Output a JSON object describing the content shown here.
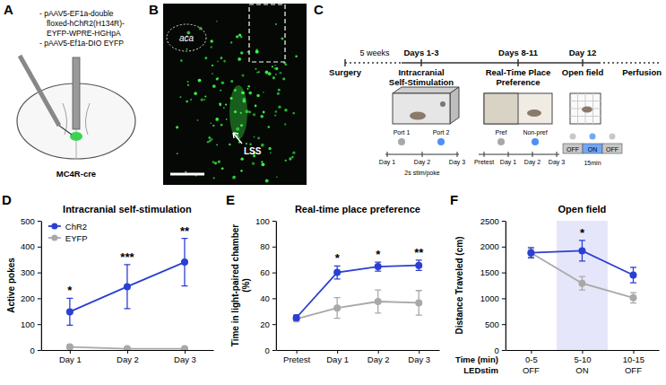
{
  "diagram": {
    "A": {
      "letter": "A",
      "vectors": [
        "- pAAV5-EF1a-double",
        "floxed-hChR2(H134R)-",
        "EYFP-WPRE-HGHpA",
        "- pAAV5-Ef1a-DIO EYFP"
      ],
      "mouse": "MC4R-cre"
    },
    "B": {
      "letter": "B",
      "regions": [
        "aca",
        "LSS"
      ]
    },
    "C": {
      "letter": "C",
      "gap": "5 weeks",
      "periods": [
        "Days 1-3",
        "Days 8-11",
        "Day 12"
      ],
      "stages": [
        "Surgery",
        "Intracranial Self-Stimulation",
        "Real-Time Place Preference",
        "Open field",
        "Perfusion"
      ],
      "icss": {
        "ports": [
          "Port 1",
          "Port 2"
        ],
        "colors": [
          "#a8a8a8",
          "#4f8ff7"
        ],
        "stim": "2s stim/poke",
        "days": [
          "Day 1",
          "Day 2",
          "Day 3"
        ]
      },
      "rtpp": {
        "sides": [
          "Pref",
          "Non-pref"
        ],
        "colors": [
          "#a8a8a8",
          "#4f8ff7"
        ],
        "days": [
          "Pretest",
          "Day 1",
          "Day 2",
          "Day 3"
        ]
      },
      "open_field": {
        "phases": [
          "OFF",
          "ON",
          "OFF"
        ],
        "colors": [
          "#c8c8c8",
          "#6fa8f7",
          "#c8c8c8"
        ],
        "duration": "15min"
      }
    }
  },
  "chart_data": [
    {
      "panel": "D",
      "type": "line",
      "title": "Intracranial self-stimulation",
      "ylabel": "Active pokes",
      "categories": [
        "Day 1",
        "Day 2",
        "Day 3"
      ],
      "ylim": [
        0,
        500
      ],
      "yticks": [
        0,
        100,
        200,
        300,
        400,
        500
      ],
      "marker": "circle",
      "line_style": "solid",
      "grid": false,
      "legend": "top-left",
      "series": [
        {
          "name": "ChR2",
          "color": "#2b3fd1",
          "values": [
            148,
            245,
            340
          ],
          "errors": [
            52,
            85,
            92
          ]
        },
        {
          "name": "EYFP",
          "color": "#a8a8a8",
          "values": [
            12,
            5,
            5
          ],
          "errors": [
            6,
            3,
            3
          ]
        }
      ],
      "annotations": [
        {
          "category": "Day 1",
          "text": "*"
        },
        {
          "category": "Day 2",
          "text": "***"
        },
        {
          "category": "Day 3",
          "text": "**"
        }
      ]
    },
    {
      "panel": "E",
      "type": "line",
      "title": "Real-time place preference",
      "ylabel": "Time in light-paired chamber (%)",
      "categories": [
        "Pretest",
        "Day 1",
        "Day 2",
        "Day 3"
      ],
      "ylim": [
        0,
        100
      ],
      "yticks": [
        0,
        20,
        40,
        60,
        80,
        100
      ],
      "marker": "circle",
      "line_style": "solid",
      "grid": false,
      "series": [
        {
          "color": "#2b3fd1",
          "values": [
            25,
            60,
            64.5,
            65.5
          ],
          "errors": [
            2,
            5,
            3.5,
            4
          ]
        },
        {
          "color": "#a8a8a8",
          "values": [
            24,
            32.5,
            37.5,
            36.5
          ],
          "errors": [
            2,
            8,
            9,
            9.5
          ]
        }
      ],
      "annotations": [
        {
          "category": "Day 1",
          "text": "*"
        },
        {
          "category": "Day 2",
          "text": "*"
        },
        {
          "category": "Day 3",
          "text": "**"
        }
      ]
    },
    {
      "panel": "F",
      "type": "line",
      "title": "Open field",
      "ylabel": "Distance Traveled (cm)",
      "xlabel": [
        "Time (min)",
        "LEDstim"
      ],
      "categories": [
        "0-5",
        "5-10",
        "10-15"
      ],
      "stim_labels": [
        "OFF",
        "ON",
        "OFF"
      ],
      "shaded": "5-10",
      "ylim": [
        0,
        2500
      ],
      "yticks": [
        0,
        500,
        1000,
        1500,
        2000,
        2500
      ],
      "marker": "circle",
      "line_style": "solid",
      "grid": false,
      "series": [
        {
          "color": "#2b3fd1",
          "values": [
            1880,
            1920,
            1450
          ],
          "errors": [
            100,
            200,
            150
          ]
        },
        {
          "color": "#a8a8a8",
          "values": [
            1880,
            1290,
            1010
          ],
          "errors": [
            80,
            130,
            100
          ]
        }
      ],
      "annotations": [
        {
          "category": "5-10",
          "text": "*"
        }
      ]
    }
  ]
}
